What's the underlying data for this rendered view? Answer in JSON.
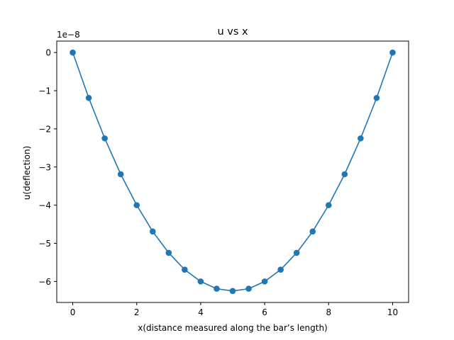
{
  "chart_data": {
    "type": "line",
    "title": "u vs x",
    "xlabel": "x(distance measured along the bar’s length)",
    "ylabel": "u(deflection)",
    "y_offset_label": "1e−8",
    "xlim": [
      -0.5,
      10.5
    ],
    "ylim": [
      -6.55,
      0.3
    ],
    "xticks": [
      0,
      2,
      4,
      6,
      8,
      10
    ],
    "xtick_labels": [
      "0",
      "2",
      "4",
      "6",
      "8",
      "10"
    ],
    "yticks": [
      0,
      -1,
      -2,
      -3,
      -4,
      -5,
      -6
    ],
    "ytick_labels": [
      "0",
      "−1",
      "−2",
      "−3",
      "−4",
      "−5",
      "−6"
    ],
    "grid": false,
    "legend": "none",
    "series": [
      {
        "color": "#1f77b4",
        "marker": "circle",
        "x": [
          0,
          0.5,
          1,
          1.5,
          2,
          2.5,
          3,
          3.5,
          4,
          4.5,
          5,
          5.5,
          6,
          6.5,
          7,
          7.5,
          8,
          8.5,
          9,
          9.5,
          10
        ],
        "y": [
          0,
          -1.19,
          -2.25,
          -3.19,
          -4.0,
          -4.69,
          -5.25,
          -5.69,
          -6.0,
          -6.19,
          -6.25,
          -6.19,
          -6.0,
          -5.69,
          -5.25,
          -4.69,
          -4.0,
          -3.19,
          -2.25,
          -1.19,
          0
        ]
      }
    ]
  }
}
